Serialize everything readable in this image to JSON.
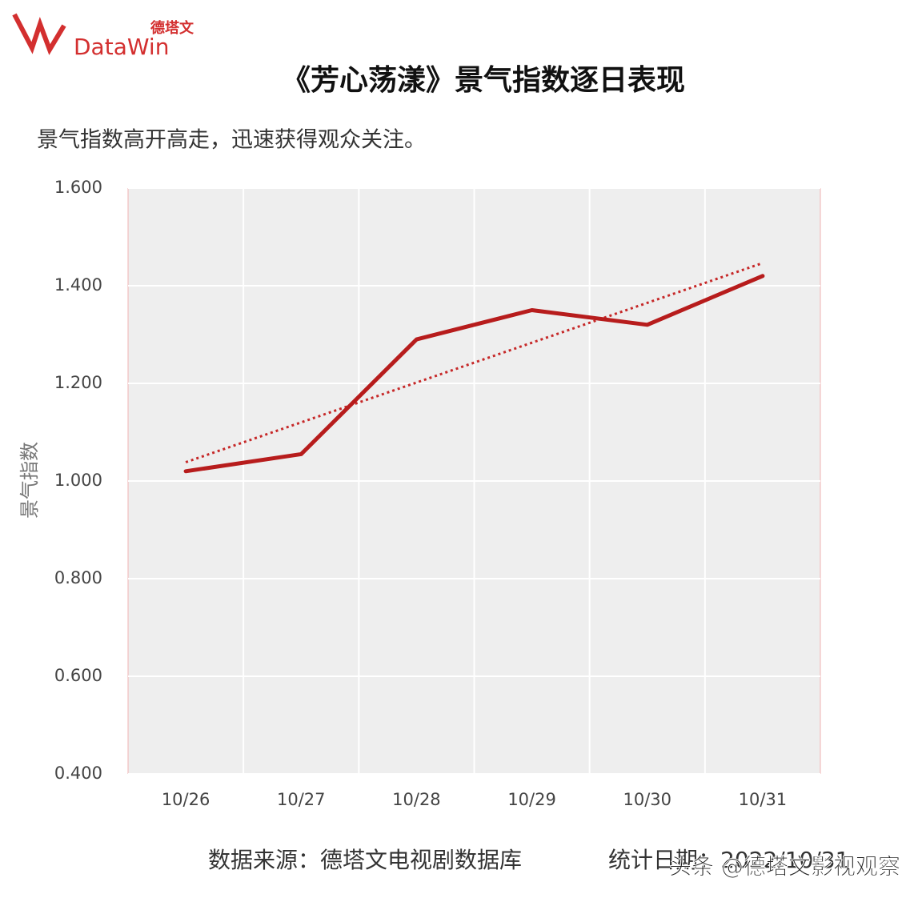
{
  "logo": {
    "cn": "德塔文",
    "en": "DataWin"
  },
  "chart_data": {
    "type": "line",
    "title": "《芳心荡漾》景气指数逐日表现",
    "subtitle": "景气指数高开高走，迅速获得观众关注。",
    "y_label": "景气指数",
    "categories": [
      "10/26",
      "10/27",
      "10/28",
      "10/29",
      "10/30",
      "10/31"
    ],
    "series": [
      {
        "color": "#b71c1c",
        "values": [
          1.02,
          1.055,
          1.29,
          1.35,
          1.32,
          1.42
        ]
      }
    ],
    "trendline": {
      "color": "#c62828",
      "values": [
        1.0385,
        1.4465
      ]
    },
    "ylim": [
      0.4,
      1.6
    ],
    "yticks": [
      {
        "value": 0.4,
        "label": "0.400"
      },
      {
        "value": 0.6,
        "label": "0.600"
      },
      {
        "value": 0.8,
        "label": "0.800"
      },
      {
        "value": 1.0,
        "label": "1.000"
      },
      {
        "value": 1.2,
        "label": "1.200"
      },
      {
        "value": 1.4,
        "label": "1.400"
      },
      {
        "value": 1.6,
        "label": "1.600"
      }
    ],
    "grid": true,
    "source": "数据来源：德塔文电视剧数据库",
    "date": "统计日期：2022/10/31"
  },
  "watermark": "头条 @德塔文影视观察"
}
